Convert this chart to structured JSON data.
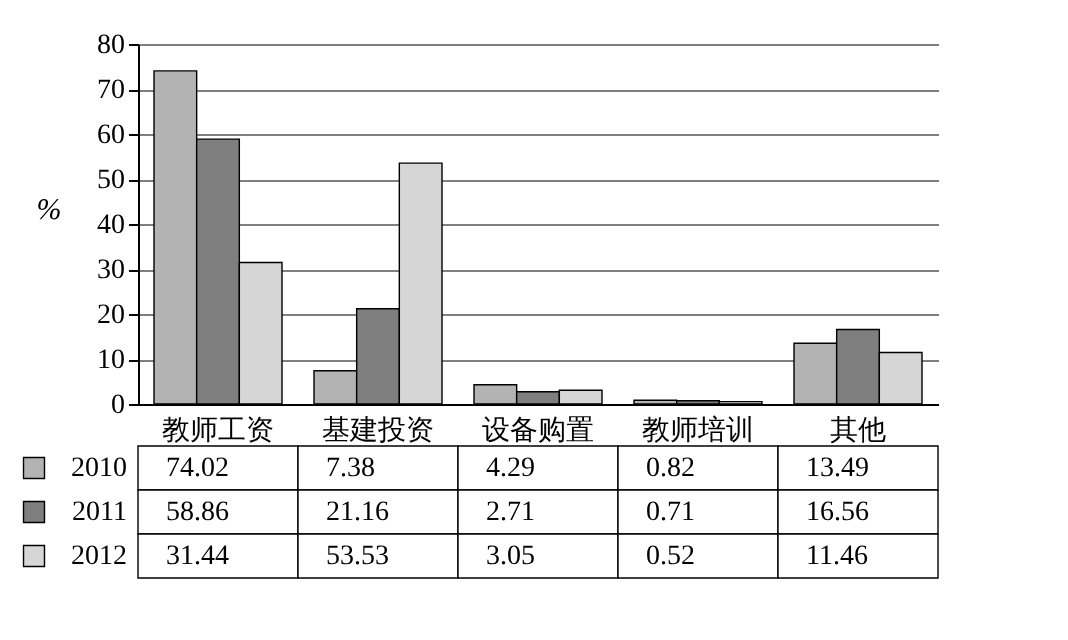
{
  "chart_data": {
    "type": "bar",
    "ylabel": "%",
    "categories": [
      "教师工资",
      "基建投资",
      "设备购置",
      "教师培训",
      "其他"
    ],
    "series": [
      {
        "name": "2010",
        "color": "#b3b3b3",
        "values": [
          74.02,
          7.38,
          4.29,
          0.82,
          13.49
        ]
      },
      {
        "name": "2011",
        "color": "#7f7f7f",
        "values": [
          58.86,
          21.16,
          2.71,
          0.71,
          16.56
        ]
      },
      {
        "name": "2012",
        "color": "#d6d6d6",
        "values": [
          31.44,
          53.53,
          3.05,
          0.52,
          11.46
        ]
      }
    ],
    "ylim": [
      0,
      80
    ],
    "yticks": [
      0,
      10,
      20,
      30,
      40,
      50,
      60,
      70,
      80
    ],
    "grid": "y",
    "data_labels": true,
    "legend": "bottom"
  }
}
